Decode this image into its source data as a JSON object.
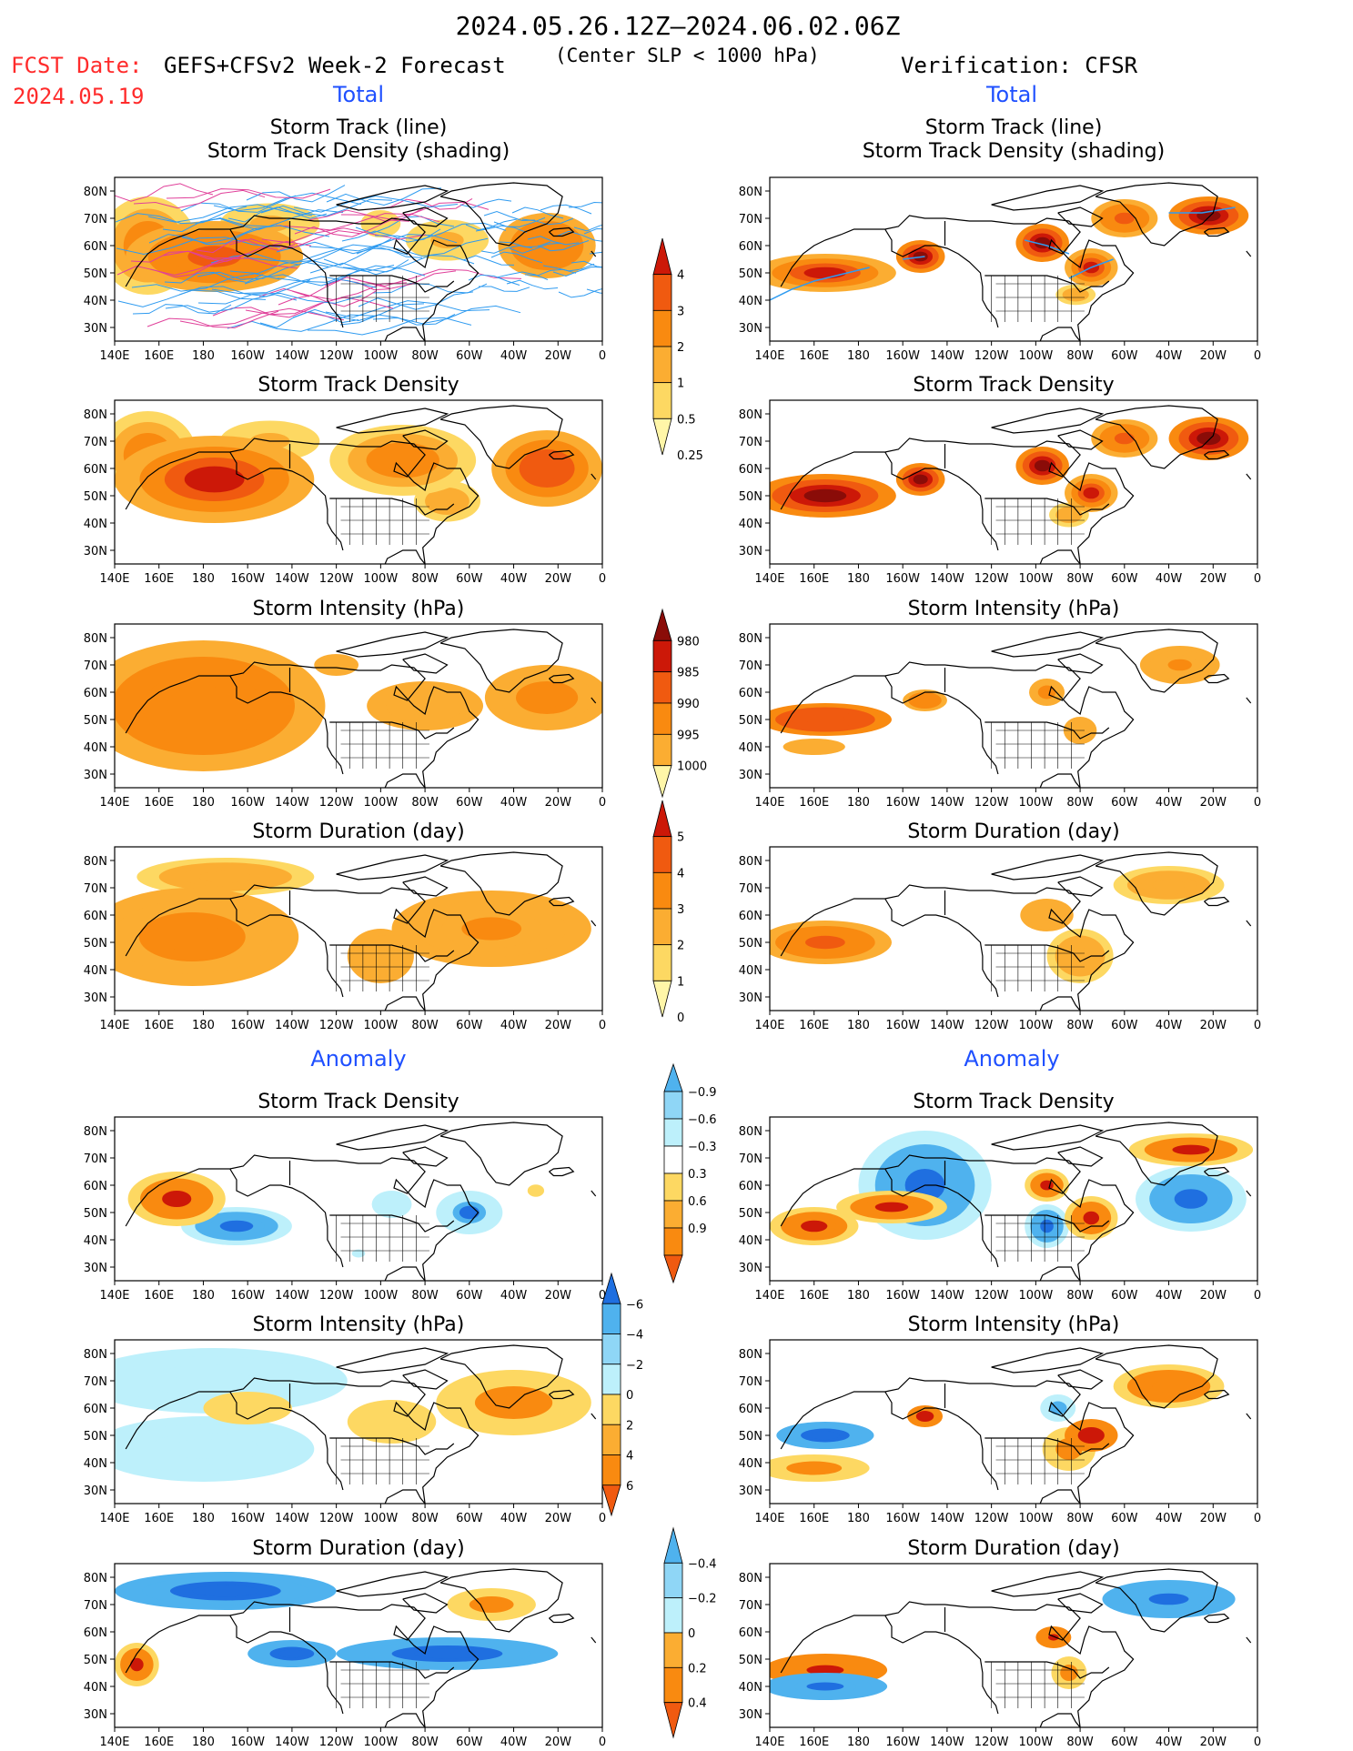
{
  "header": {
    "date_range": "2024.05.26.12Z–2024.06.02.06Z",
    "fcst_label": "FCST Date:",
    "fcst_date": "2024.05.19",
    "model": "GEFS+CFSv2 Week-2 Forecast",
    "criterion": "(Center SLP < 1000 hPa)",
    "verification": "Verification: CFSR"
  },
  "section_labels": {
    "total": "Total",
    "anomaly": "Anomaly"
  },
  "panel_titles": {
    "track_line": "Storm Track (line)",
    "track_shading": "Storm Track Density (shading)",
    "density": "Storm Track Density",
    "intensity": "Storm Intensity (hPa)",
    "duration": "Storm Duration (day)"
  },
  "lon_labels": [
    "140E",
    "160E",
    "180",
    "160W",
    "140W",
    "120W",
    "100W",
    "80W",
    "60W",
    "40W",
    "20W",
    "0"
  ],
  "lat_labels": [
    "80N",
    "70N",
    "60N",
    "50N",
    "40N",
    "30N"
  ],
  "colors": {
    "c1": "#fff6a8",
    "c2": "#fdd862",
    "c3": "#fbad32",
    "c4": "#f98a10",
    "c5": "#f05a10",
    "c6": "#cc1808",
    "c7": "#8a0c08",
    "b1": "#bdf0fb",
    "b2": "#8fd6f6",
    "b3": "#4fb2ee",
    "b4": "#1f6fe0",
    "track": "#2f9bf0",
    "title_red": "#ff2b2b",
    "label_blue": "#1f50ff"
  },
  "chart_data": [
    {
      "id": "fcst-track",
      "type": "heatmap",
      "column": "GEFS+CFSv2",
      "title": "Storm Track (line) / Storm Track Density (shading)",
      "features": [
        {
          "lon": -175,
          "lat": 56,
          "rx": 40,
          "ry": 13,
          "v": 2.5
        },
        {
          "lon": 155,
          "lat": 60,
          "rx": 22,
          "ry": 18,
          "v": 1.5
        },
        {
          "lon": -150,
          "lat": 68,
          "rx": 30,
          "ry": 10,
          "v": 0.6
        },
        {
          "lon": -25,
          "lat": 60,
          "rx": 22,
          "ry": 12,
          "v": 2.0
        },
        {
          "lon": -70,
          "lat": 62,
          "rx": 25,
          "ry": 10,
          "v": 0.6
        },
        {
          "lon": -100,
          "lat": 68,
          "rx": 18,
          "ry": 10,
          "v": 0.4
        }
      ]
    },
    {
      "id": "obs-track",
      "type": "heatmap",
      "column": "CFSR",
      "title": "Storm Track (line) / Storm Track Density (shading)",
      "features": [
        {
          "lon": 165,
          "lat": 50,
          "rx": 32,
          "ry": 7,
          "v": 3.2
        },
        {
          "lon": -152,
          "lat": 56,
          "rx": 11,
          "ry": 6,
          "v": 4.2
        },
        {
          "lon": -97,
          "lat": 61,
          "rx": 12,
          "ry": 7,
          "v": 4.2
        },
        {
          "lon": -75,
          "lat": 52,
          "rx": 12,
          "ry": 7,
          "v": 3.2
        },
        {
          "lon": -60,
          "lat": 70,
          "rx": 15,
          "ry": 7,
          "v": 2.3
        },
        {
          "lon": -22,
          "lat": 71,
          "rx": 18,
          "ry": 7,
          "v": 4.2
        },
        {
          "lon": -82,
          "lat": 42,
          "rx": 12,
          "ry": 5,
          "v": 0.7
        }
      ]
    },
    {
      "id": "fcst-density",
      "type": "heatmap",
      "column": "GEFS+CFSv2",
      "title": "Storm Track Density",
      "features": [
        {
          "lon": -175,
          "lat": 56,
          "rx": 45,
          "ry": 16,
          "v": 3.2
        },
        {
          "lon": 155,
          "lat": 65,
          "rx": 22,
          "ry": 16,
          "v": 1.5
        },
        {
          "lon": -90,
          "lat": 63,
          "rx": 33,
          "ry": 13,
          "v": 1.5
        },
        {
          "lon": -25,
          "lat": 60,
          "rx": 25,
          "ry": 14,
          "v": 2.6
        },
        {
          "lon": -150,
          "lat": 70,
          "rx": 30,
          "ry": 10,
          "v": 0.6
        },
        {
          "lon": -70,
          "lat": 48,
          "rx": 20,
          "ry": 10,
          "v": 0.9
        }
      ]
    },
    {
      "id": "obs-density",
      "type": "heatmap",
      "column": "CFSR",
      "title": "Storm Track Density",
      "features": [
        {
          "lon": 165,
          "lat": 50,
          "rx": 32,
          "ry": 8,
          "v": 4.2
        },
        {
          "lon": -152,
          "lat": 56,
          "rx": 11,
          "ry": 6,
          "v": 4.5
        },
        {
          "lon": -97,
          "lat": 61,
          "rx": 12,
          "ry": 7,
          "v": 4.2
        },
        {
          "lon": -75,
          "lat": 51,
          "rx": 12,
          "ry": 7,
          "v": 3.5
        },
        {
          "lon": -60,
          "lat": 71,
          "rx": 15,
          "ry": 7,
          "v": 2.5
        },
        {
          "lon": -22,
          "lat": 71,
          "rx": 18,
          "ry": 8,
          "v": 4.2
        },
        {
          "lon": -85,
          "lat": 43,
          "rx": 12,
          "ry": 6,
          "v": 0.9
        }
      ]
    },
    {
      "id": "fcst-intensity",
      "type": "heatmap",
      "column": "GEFS+CFSv2",
      "title": "Storm Intensity (hPa)",
      "features": [
        {
          "lon": 180,
          "lat": 55,
          "rx": 55,
          "ry": 24,
          "v": 992
        },
        {
          "lon": -25,
          "lat": 58,
          "rx": 28,
          "ry": 12,
          "v": 993
        },
        {
          "lon": -80,
          "lat": 55,
          "rx": 35,
          "ry": 12,
          "v": 997
        },
        {
          "lon": -120,
          "lat": 70,
          "rx": 20,
          "ry": 8,
          "v": 998
        }
      ]
    },
    {
      "id": "obs-intensity",
      "type": "heatmap",
      "column": "CFSR",
      "title": "Storm Intensity (hPa)",
      "features": [
        {
          "lon": 165,
          "lat": 50,
          "rx": 30,
          "ry": 6,
          "v": 986
        },
        {
          "lon": -150,
          "lat": 57,
          "rx": 10,
          "ry": 4,
          "v": 992
        },
        {
          "lon": -35,
          "lat": 70,
          "rx": 18,
          "ry": 7,
          "v": 994
        },
        {
          "lon": -95,
          "lat": 60,
          "rx": 8,
          "ry": 5,
          "v": 993
        },
        {
          "lon": -80,
          "lat": 46,
          "rx": 15,
          "ry": 10,
          "v": 998
        },
        {
          "lon": 160,
          "lat": 40,
          "rx": 28,
          "ry": 6,
          "v": 998
        }
      ]
    },
    {
      "id": "fcst-duration",
      "type": "heatmap",
      "column": "GEFS+CFSv2",
      "title": "Storm Duration (day)",
      "features": [
        {
          "lon": 175,
          "lat": 52,
          "rx": 48,
          "ry": 18,
          "v": 2.6
        },
        {
          "lon": -50,
          "lat": 55,
          "rx": 45,
          "ry": 14,
          "v": 2.2
        },
        {
          "lon": -100,
          "lat": 45,
          "rx": 15,
          "ry": 10,
          "v": 2.0
        },
        {
          "lon": -170,
          "lat": 74,
          "rx": 40,
          "ry": 7,
          "v": 1.5
        }
      ]
    },
    {
      "id": "obs-duration",
      "type": "heatmap",
      "column": "CFSR",
      "title": "Storm Duration (day)",
      "features": [
        {
          "lon": 165,
          "lat": 50,
          "rx": 30,
          "ry": 8,
          "v": 3.3
        },
        {
          "lon": -40,
          "lat": 71,
          "rx": 25,
          "ry": 7,
          "v": 1.5
        },
        {
          "lon": -95,
          "lat": 60,
          "rx": 12,
          "ry": 6,
          "v": 2.0
        },
        {
          "lon": -80,
          "lat": 45,
          "rx": 15,
          "ry": 10,
          "v": 1.8
        }
      ]
    },
    {
      "id": "fcst-density-anom",
      "type": "heatmap",
      "column": "GEFS+CFSv2",
      "title": "Storm Track Density (anomaly)",
      "features": [
        {
          "lon": 168,
          "lat": 55,
          "rx": 22,
          "ry": 10,
          "v": 1.0
        },
        {
          "lon": -165,
          "lat": 45,
          "rx": 25,
          "ry": 7,
          "v": -0.95
        },
        {
          "lon": -60,
          "lat": 50,
          "rx": 15,
          "ry": 8,
          "v": -0.9
        },
        {
          "lon": -95,
          "lat": 53,
          "rx": 18,
          "ry": 10,
          "v": -0.4
        },
        {
          "lon": -30,
          "lat": 58,
          "rx": 5,
          "ry": 3,
          "v": 0.5
        },
        {
          "lon": -110,
          "lat": 35,
          "rx": 10,
          "ry": 5,
          "v": -0.35
        }
      ]
    },
    {
      "id": "obs-density-anom",
      "type": "heatmap",
      "column": "CFSR",
      "title": "Storm Track Density (anomaly)",
      "features": [
        {
          "lon": 160,
          "lat": 45,
          "rx": 20,
          "ry": 7,
          "v": 1.0
        },
        {
          "lon": -165,
          "lat": 52,
          "rx": 25,
          "ry": 6,
          "v": 1.0
        },
        {
          "lon": -150,
          "lat": 60,
          "rx": 30,
          "ry": 20,
          "v": -0.95
        },
        {
          "lon": -30,
          "lat": 55,
          "rx": 25,
          "ry": 12,
          "v": -0.95
        },
        {
          "lon": -30,
          "lat": 73,
          "rx": 28,
          "ry": 6,
          "v": 1.0
        },
        {
          "lon": -95,
          "lat": 60,
          "rx": 10,
          "ry": 6,
          "v": 1.0
        },
        {
          "lon": -75,
          "lat": 48,
          "rx": 12,
          "ry": 8,
          "v": 1.0
        },
        {
          "lon": -95,
          "lat": 45,
          "rx": 10,
          "ry": 8,
          "v": -0.95
        }
      ]
    },
    {
      "id": "fcst-intensity-anom",
      "type": "heatmap",
      "column": "GEFS+CFSv2",
      "title": "Storm Intensity (hPa) (anomaly)",
      "features": [
        {
          "lon": -175,
          "lat": 70,
          "rx": 60,
          "ry": 12,
          "v": -0.8
        },
        {
          "lon": 180,
          "lat": 45,
          "rx": 50,
          "ry": 12,
          "v": -0.8
        },
        {
          "lon": -40,
          "lat": 62,
          "rx": 35,
          "ry": 12,
          "v": 3.0
        },
        {
          "lon": -95,
          "lat": 55,
          "rx": 20,
          "ry": 8,
          "v": 1.5
        },
        {
          "lon": -160,
          "lat": 60,
          "rx": 20,
          "ry": 6,
          "v": 1.2
        }
      ]
    },
    {
      "id": "obs-intensity-anom",
      "type": "heatmap",
      "column": "CFSR",
      "title": "Storm Intensity (hPa) (anomaly)",
      "features": [
        {
          "lon": 165,
          "lat": 50,
          "rx": 22,
          "ry": 5,
          "v": -6
        },
        {
          "lon": -40,
          "lat": 68,
          "rx": 25,
          "ry": 8,
          "v": 3.5
        },
        {
          "lon": -75,
          "lat": 50,
          "rx": 12,
          "ry": 6,
          "v": 5
        },
        {
          "lon": -90,
          "lat": 60,
          "rx": 8,
          "ry": 5,
          "v": -3
        },
        {
          "lon": -150,
          "lat": 57,
          "rx": 8,
          "ry": 4,
          "v": 5
        },
        {
          "lon": 160,
          "lat": 38,
          "rx": 25,
          "ry": 5,
          "v": 2.5
        },
        {
          "lon": -85,
          "lat": 45,
          "rx": 12,
          "ry": 8,
          "v": 2.5
        }
      ]
    },
    {
      "id": "fcst-duration-anom",
      "type": "heatmap",
      "column": "GEFS+CFSv2",
      "title": "Storm Duration (day) (anomaly)",
      "features": [
        {
          "lon": -170,
          "lat": 75,
          "rx": 50,
          "ry": 7,
          "v": -0.5
        },
        {
          "lon": -70,
          "lat": 52,
          "rx": 50,
          "ry": 6,
          "v": -0.5
        },
        {
          "lon": -140,
          "lat": 52,
          "rx": 20,
          "ry": 5,
          "v": -0.5
        },
        {
          "lon": 150,
          "lat": 48,
          "rx": 10,
          "ry": 8,
          "v": 0.4
        },
        {
          "lon": -50,
          "lat": 70,
          "rx": 20,
          "ry": 6,
          "v": 0.3
        }
      ]
    },
    {
      "id": "obs-duration-anom",
      "type": "heatmap",
      "column": "CFSR",
      "title": "Storm Duration (day) (anomaly)",
      "features": [
        {
          "lon": 165,
          "lat": 46,
          "rx": 28,
          "ry": 6,
          "v": 0.45
        },
        {
          "lon": 165,
          "lat": 40,
          "rx": 28,
          "ry": 5,
          "v": -0.45
        },
        {
          "lon": -40,
          "lat": 72,
          "rx": 30,
          "ry": 7,
          "v": -0.45
        },
        {
          "lon": -92,
          "lat": 58,
          "rx": 8,
          "ry": 4,
          "v": 0.45
        },
        {
          "lon": -85,
          "lat": 45,
          "rx": 8,
          "ry": 6,
          "v": 0.3
        }
      ]
    }
  ],
  "colorbars": [
    {
      "name": "density",
      "labels": [
        "0.25",
        "0.5",
        "1",
        "2",
        "3",
        "4"
      ],
      "colors": [
        "c1",
        "c2",
        "c3",
        "c4",
        "c5",
        "c6"
      ]
    },
    {
      "name": "intensity",
      "labels": [
        "1000",
        "995",
        "990",
        "985",
        "980"
      ],
      "colors": [
        "c1",
        "c3",
        "c4",
        "c5",
        "c6",
        "c7"
      ]
    },
    {
      "name": "duration",
      "labels": [
        "0",
        "1",
        "2",
        "3",
        "4",
        "5"
      ],
      "colors": [
        "c1",
        "c2",
        "c3",
        "c4",
        "c5",
        "c6"
      ]
    },
    {
      "name": "density-anom",
      "labels": [
        "0.9",
        "0.6",
        "0.3",
        "−0.3",
        "−0.6",
        "−0.9"
      ],
      "colors": [
        "c5",
        "c4",
        "c3",
        "c2",
        "white",
        "b1",
        "b2",
        "b3"
      ]
    },
    {
      "name": "intensity-anom",
      "labels": [
        "6",
        "4",
        "2",
        "0",
        "−2",
        "−4",
        "−6"
      ],
      "colors": [
        "c5",
        "c4",
        "c3",
        "c2",
        "b1",
        "b2",
        "b3",
        "b4"
      ]
    },
    {
      "name": "duration-anom",
      "labels": [
        "0.4",
        "0.2",
        "0",
        "−0.2",
        "−0.4"
      ],
      "colors": [
        "c5",
        "c4",
        "c3",
        "b1",
        "b2",
        "b3"
      ]
    }
  ]
}
